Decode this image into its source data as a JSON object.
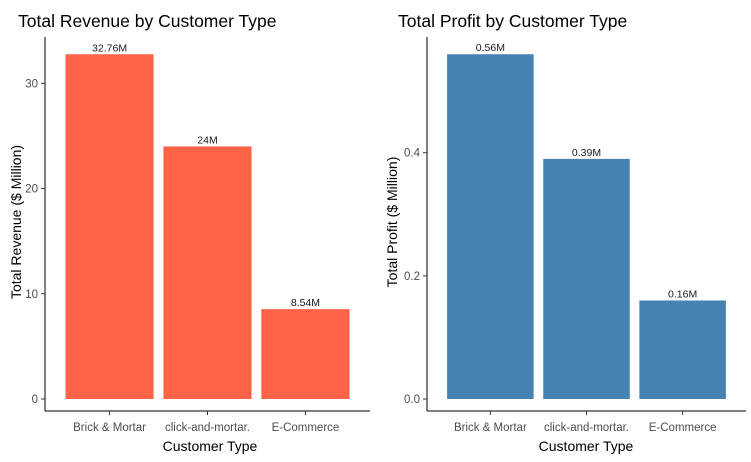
{
  "chart_data": [
    {
      "type": "bar",
      "title": "Total Revenue by Customer Type",
      "xlabel": "Customer Type",
      "ylabel": "Total Revenue ($ Million)",
      "categories": [
        "Brick & Mortar",
        "click-and-mortar.",
        "E-Commerce"
      ],
      "values": [
        32.76,
        24,
        8.54
      ],
      "data_labels": [
        "32.76M",
        "24M",
        "8.54M"
      ],
      "yticks": [
        0,
        10,
        20,
        30
      ],
      "ylim": [
        0,
        34.4
      ],
      "color": "#FF6347",
      "grid": false
    },
    {
      "type": "bar",
      "title": "Total Profit by Customer Type",
      "xlabel": "Customer Type",
      "ylabel": "Total Profit ($ Million)",
      "categories": [
        "Brick & Mortar",
        "click-and-mortar.",
        "E-Commerce"
      ],
      "values": [
        0.56,
        0.39,
        0.16
      ],
      "data_labels": [
        "0.56M",
        "0.39M",
        "0.16M"
      ],
      "yticks": [
        "0.0",
        "0.2",
        "0.4"
      ],
      "ylim": [
        0,
        0.588
      ],
      "color": "#4682B4",
      "grid": false
    }
  ]
}
